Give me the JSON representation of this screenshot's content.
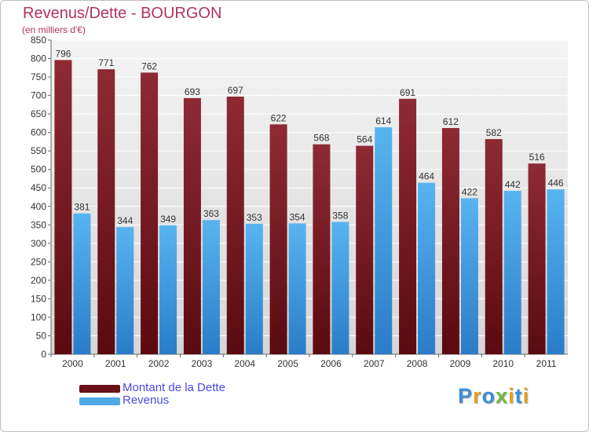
{
  "chart_data": {
    "type": "bar",
    "title": "Revenus/Dette - BOURGON",
    "subtitle": "(en milliers d'€)",
    "categories": [
      "2000",
      "2001",
      "2002",
      "2003",
      "2004",
      "2005",
      "2006",
      "2007",
      "2008",
      "2009",
      "2010",
      "2011"
    ],
    "series": [
      {
        "name": "Montant de la Dette",
        "values": [
          796,
          771,
          762,
          693,
          697,
          622,
          568,
          564,
          691,
          612,
          582,
          516
        ],
        "color": "#7a1e28"
      },
      {
        "name": "Revenus",
        "values": [
          381,
          344,
          349,
          363,
          353,
          354,
          358,
          614,
          464,
          422,
          442,
          446
        ],
        "color": "#4ea8e8"
      }
    ],
    "ylim": [
      0,
      850
    ],
    "yticks": [
      0,
      50,
      100,
      150,
      200,
      250,
      300,
      350,
      400,
      450,
      500,
      550,
      600,
      650,
      700,
      750,
      800,
      850
    ],
    "grid": true,
    "legend_position": "bottom-left"
  },
  "logo": {
    "letters": [
      {
        "ch": "P",
        "color": "#3a8fd8"
      },
      {
        "ch": "r",
        "color": "#e8a020"
      },
      {
        "ch": "o",
        "color": "#3a8fd8"
      },
      {
        "ch": "x",
        "color": "#6cb83a"
      },
      {
        "ch": "i",
        "color": "#e8a020"
      },
      {
        "ch": "t",
        "color": "#3a8fd8"
      },
      {
        "ch": "i",
        "color": "#e8a020"
      }
    ]
  }
}
